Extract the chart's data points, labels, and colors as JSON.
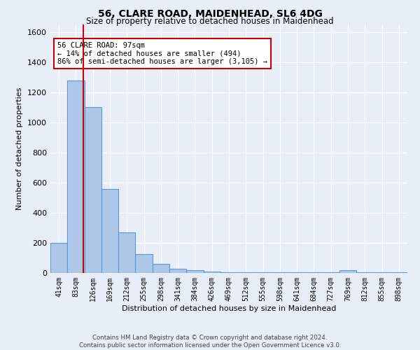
{
  "title": "56, CLARE ROAD, MAIDENHEAD, SL6 4DG",
  "subtitle": "Size of property relative to detached houses in Maidenhead",
  "xlabel": "Distribution of detached houses by size in Maidenhead",
  "ylabel": "Number of detached properties",
  "bin_labels": [
    "41sqm",
    "83sqm",
    "126sqm",
    "169sqm",
    "212sqm",
    "255sqm",
    "298sqm",
    "341sqm",
    "384sqm",
    "426sqm",
    "469sqm",
    "512sqm",
    "555sqm",
    "598sqm",
    "641sqm",
    "684sqm",
    "727sqm",
    "769sqm",
    "812sqm",
    "855sqm",
    "898sqm"
  ],
  "bin_values": [
    200,
    1280,
    1100,
    560,
    270,
    125,
    62,
    30,
    20,
    10,
    5,
    5,
    5,
    5,
    5,
    5,
    5,
    18,
    5,
    5,
    5
  ],
  "bar_color": "#aec6e8",
  "bar_edge_color": "#5b9bd5",
  "background_color": "#e8eef7",
  "grid_color": "#ffffff",
  "vline_x_index": 1.42,
  "vline_color": "#cc0000",
  "annotation_text": "56 CLARE ROAD: 97sqm\n← 14% of detached houses are smaller (494)\n86% of semi-detached houses are larger (3,105) →",
  "annotation_box_color": "#ffffff",
  "annotation_box_edge_color": "#cc0000",
  "ylim": [
    0,
    1650
  ],
  "yticks": [
    0,
    200,
    400,
    600,
    800,
    1000,
    1200,
    1400,
    1600
  ],
  "footer": "Contains HM Land Registry data © Crown copyright and database right 2024.\nContains public sector information licensed under the Open Government Licence v3.0."
}
